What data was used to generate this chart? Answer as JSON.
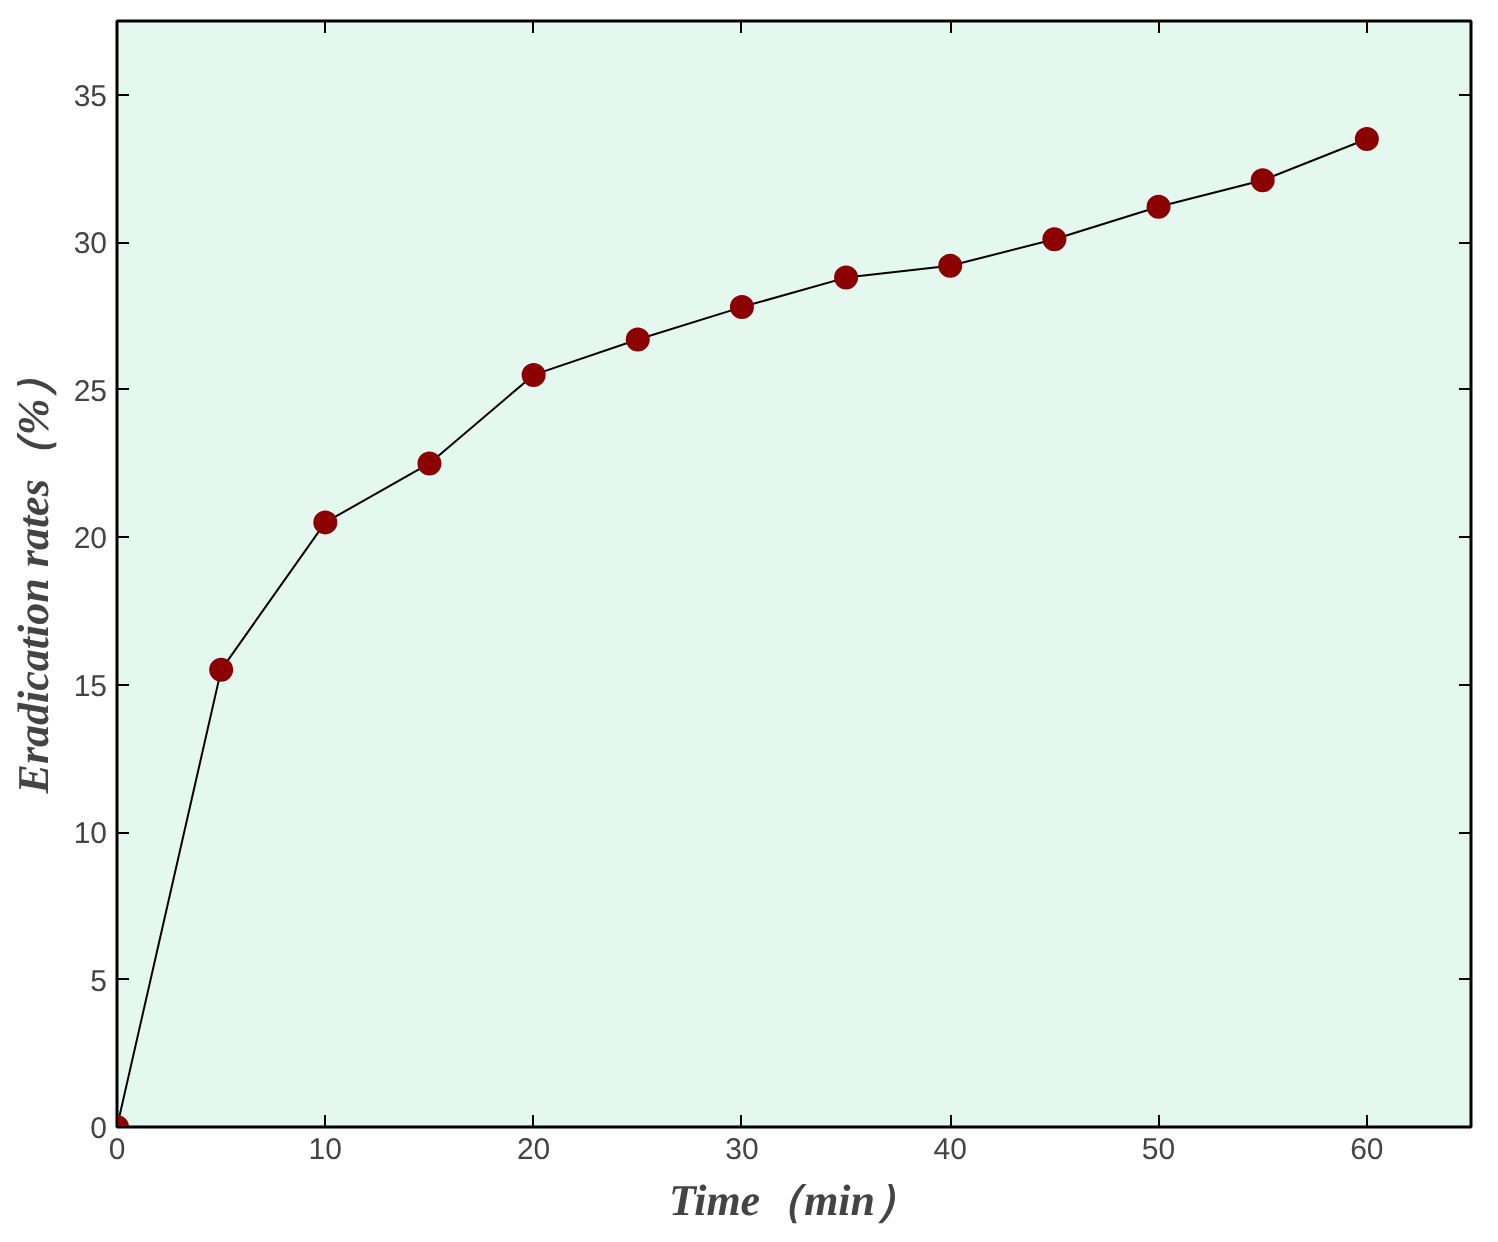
{
  "chart_data": {
    "type": "line",
    "xlabel": "Time（min）",
    "ylabel": "Eradication rates（%）",
    "x": [
      0,
      5,
      10,
      15,
      20,
      25,
      30,
      35,
      40,
      45,
      50,
      55,
      60
    ],
    "series": [
      {
        "color": "#8b0000",
        "values": [
          0,
          15.5,
          20.5,
          22.5,
          25.5,
          26.7,
          27.8,
          28.8,
          29.2,
          30.1,
          31.2,
          32.1,
          33.5
        ]
      }
    ],
    "xlim": [
      0,
      65
    ],
    "ylim": [
      0,
      37.5
    ],
    "xticks": [
      0,
      10,
      20,
      30,
      40,
      50,
      60
    ],
    "yticks": [
      0,
      5,
      10,
      15,
      20,
      25,
      30,
      35
    ],
    "marker": "circle",
    "line_style": "solid"
  }
}
